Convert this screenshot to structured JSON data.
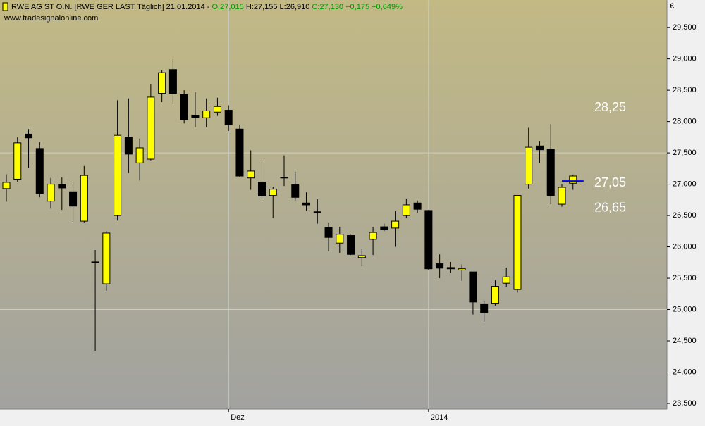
{
  "chart_data": {
    "type": "candlestick",
    "title_parts": [
      {
        "text": "RWE AG ST O.N. [RWE GER LAST Täglich] 21.01.2014 - ",
        "color": "#000000"
      },
      {
        "text": "O:27,015 ",
        "color": "#009900"
      },
      {
        "text": "H:27,155 L:26,910 ",
        "color": "#000000"
      },
      {
        "text": "C:27,130 +0,175 +0,649%",
        "color": "#009900"
      }
    ],
    "source": "www.tradesignalonline.com",
    "currency": "€",
    "categories": [
      null,
      null,
      null,
      null,
      null,
      null,
      null,
      null,
      null,
      null,
      null,
      null,
      null,
      null,
      null,
      null,
      null,
      null,
      null,
      null,
      "Dez",
      null,
      null,
      null,
      null,
      null,
      null,
      null,
      null,
      null,
      null,
      null,
      null,
      null,
      null,
      null,
      null,
      null,
      "2014",
      null,
      null,
      null,
      null,
      null,
      null,
      null,
      null,
      null,
      null,
      null,
      null,
      null
    ],
    "open": [
      26.93,
      27.08,
      27.8,
      27.57,
      26.73,
      27.0,
      26.88,
      26.41,
      25.76,
      25.41,
      26.5,
      27.75,
      27.34,
      27.4,
      28.45,
      28.83,
      28.43,
      28.1,
      28.06,
      28.15,
      28.18,
      27.88,
      27.1,
      27.03,
      26.82,
      27.11,
      26.99,
      26.7,
      26.56,
      26.31,
      26.06,
      26.18,
      25.83,
      26.12,
      26.32,
      26.3,
      26.5,
      26.7,
      26.58,
      25.73,
      25.67,
      25.63,
      25.6,
      25.08,
      25.09,
      25.42,
      25.32,
      27.0,
      27.61,
      27.56,
      26.68,
      27.015
    ],
    "high": [
      27.16,
      27.75,
      27.88,
      27.67,
      27.1,
      27.11,
      27.04,
      27.29,
      25.95,
      26.25,
      28.34,
      28.37,
      27.73,
      28.59,
      28.82,
      29.0,
      28.5,
      28.47,
      28.37,
      28.38,
      28.26,
      27.95,
      27.54,
      27.41,
      26.96,
      27.46,
      27.2,
      26.87,
      26.76,
      26.39,
      26.32,
      26.19,
      25.97,
      26.32,
      26.37,
      26.57,
      26.77,
      26.74,
      26.59,
      25.88,
      25.76,
      25.72,
      25.6,
      25.13,
      25.47,
      25.67,
      26.82,
      27.9,
      27.69,
      27.96,
      27.0,
      27.155
    ],
    "low": [
      26.72,
      27.04,
      27.26,
      26.79,
      26.61,
      26.59,
      26.4,
      26.39,
      24.34,
      25.3,
      26.42,
      27.18,
      27.06,
      27.38,
      28.31,
      28.28,
      27.97,
      27.91,
      27.91,
      28.09,
      27.85,
      27.11,
      26.91,
      26.76,
      26.46,
      26.97,
      26.74,
      26.58,
      26.37,
      25.93,
      25.9,
      25.87,
      25.69,
      25.87,
      26.25,
      26.0,
      26.46,
      26.54,
      25.63,
      25.5,
      25.58,
      25.46,
      24.92,
      24.81,
      25.06,
      25.36,
      25.27,
      26.93,
      27.34,
      26.68,
      26.64,
      26.91
    ],
    "close": [
      27.03,
      27.66,
      27.74,
      26.85,
      27.0,
      26.94,
      26.65,
      27.14,
      25.75,
      26.22,
      27.78,
      27.48,
      27.58,
      28.39,
      28.78,
      28.45,
      28.03,
      28.06,
      28.17,
      28.24,
      27.95,
      27.13,
      27.21,
      26.81,
      26.92,
      27.1,
      26.79,
      26.67,
      26.55,
      26.15,
      26.2,
      25.88,
      25.86,
      26.23,
      26.27,
      26.41,
      26.67,
      26.6,
      25.65,
      25.66,
      25.65,
      25.65,
      25.12,
      24.95,
      25.37,
      25.52,
      26.82,
      27.59,
      27.55,
      26.82,
      26.95,
      27.13
    ],
    "up_color": "#ffff00",
    "down_color": "#000000",
    "ylim": [
      23.41,
      29.94
    ],
    "yticks": [
      {
        "value": 23.5,
        "label": "23,500"
      },
      {
        "value": 24,
        "label": "24,000"
      },
      {
        "value": 24.5,
        "label": "24,500"
      },
      {
        "value": 25,
        "label": "25,000"
      },
      {
        "value": 25.5,
        "label": "25,500"
      },
      {
        "value": 26,
        "label": "26,000"
      },
      {
        "value": 26.5,
        "label": "26,500"
      },
      {
        "value": 27,
        "label": "27,000"
      },
      {
        "value": 27.5,
        "label": "27,500"
      },
      {
        "value": 28,
        "label": "28,000"
      },
      {
        "value": 28.5,
        "label": "28,500"
      },
      {
        "value": 29,
        "label": "29,000"
      },
      {
        "value": 29.5,
        "label": "29,500"
      }
    ],
    "grid_y": [
      25,
      27.5
    ],
    "levels": [
      {
        "value": 28.25,
        "label": "28,25"
      },
      {
        "value": 27.05,
        "label": "27,05",
        "color": "#0000ff"
      },
      {
        "value": 26.65,
        "label": "26,65"
      }
    ]
  }
}
